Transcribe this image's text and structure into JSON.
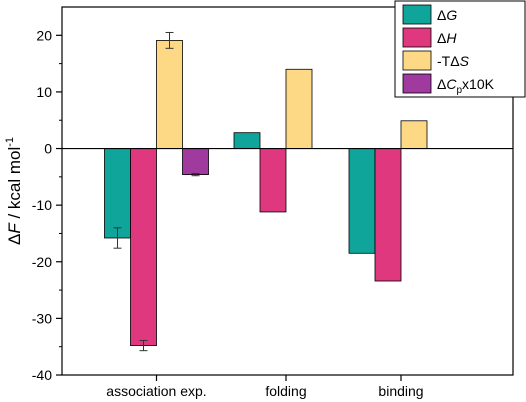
{
  "chart_data": {
    "type": "bar",
    "categories": [
      "association exp.",
      "folding",
      "binding"
    ],
    "series": [
      {
        "name": "ΔG",
        "legend": {
          "prefix": "Δ",
          "italic": "G",
          "suffix": ""
        },
        "color": "#10a59a",
        "values": [
          -15.8,
          2.8,
          -18.5
        ],
        "errors": [
          1.8,
          null,
          null
        ]
      },
      {
        "name": "ΔH",
        "legend": {
          "prefix": "Δ",
          "italic": "H",
          "suffix": ""
        },
        "color": "#e0387e",
        "values": [
          -34.8,
          -11.2,
          -23.4
        ],
        "errors": [
          0.9,
          null,
          null
        ]
      },
      {
        "name": "-TΔS",
        "legend": {
          "prefix": "-TΔ",
          "italic": "S",
          "suffix": ""
        },
        "color": "#fdd985",
        "values": [
          19.1,
          14.0,
          4.9
        ],
        "errors": [
          1.4,
          null,
          null
        ]
      },
      {
        "name": "ΔCpx10K",
        "legend": {
          "prefix": "Δ",
          "italic": "C",
          "sub": "p",
          "suffix": "x10K"
        },
        "color": "#a03a9f",
        "values": [
          -4.6,
          null,
          null
        ],
        "errors": [
          0.2,
          null,
          null
        ]
      }
    ],
    "ylabel": {
      "prefix": "Δ",
      "italic": "F",
      "suffix": " / kcal mol",
      "sup": "-1"
    },
    "ylim": [
      -40,
      25
    ],
    "yticks": [
      -40,
      -30,
      -20,
      -10,
      0,
      10,
      20
    ],
    "legend_position": "top-right",
    "grid": false
  }
}
